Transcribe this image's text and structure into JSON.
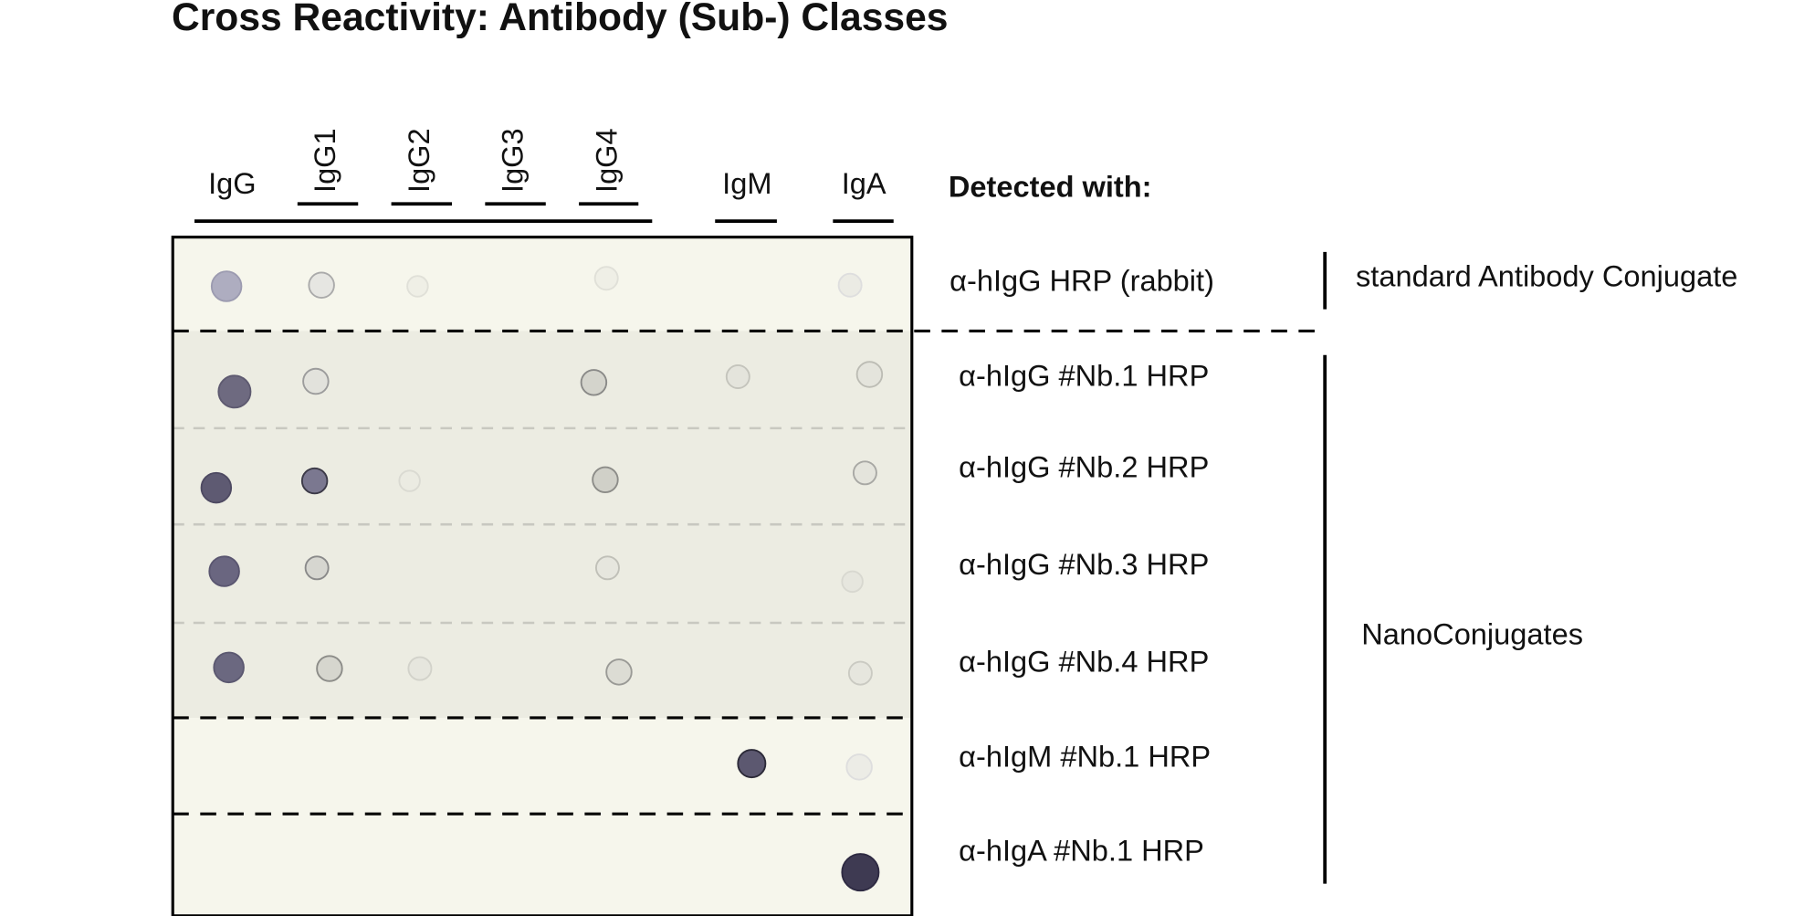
{
  "title": "Cross Reactivity: Antibody (Sub-) Classes",
  "columns": [
    "IgG",
    "IgG1",
    "IgG2",
    "IgG3",
    "IgG4",
    "IgM",
    "IgA"
  ],
  "detected_with": "Detected with:",
  "rows": [
    "α-hIgG HRP (rabbit)",
    "α-hIgG #Nb.1 HRP",
    "α-hIgG #Nb.2 HRP",
    "α-hIgG #Nb.3 HRP",
    "α-hIgG #Nb.4 HRP",
    "α-hIgM #Nb.1 HRP",
    "α-hIgA #Nb.1 HRP"
  ],
  "groups": [
    "standard Antibody Conjugate",
    "NanoConjugates"
  ]
}
